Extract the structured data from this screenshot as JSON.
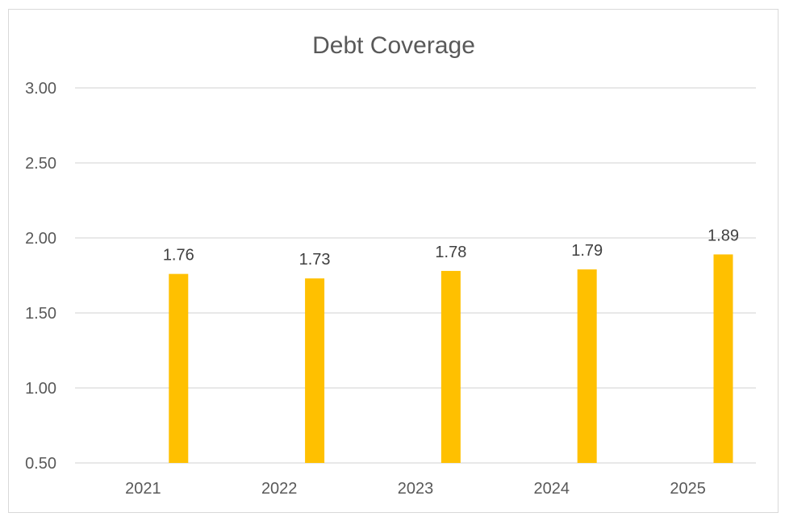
{
  "chart_data": {
    "type": "bar",
    "title": "Debt Coverage",
    "xlabel": "",
    "ylabel": "",
    "categories": [
      "2021",
      "2022",
      "2023",
      "2024",
      "2025"
    ],
    "values": [
      1.76,
      1.73,
      1.78,
      1.79,
      1.89
    ],
    "data_labels": [
      "1.76",
      "1.73",
      "1.78",
      "1.79",
      "1.89"
    ],
    "ylim": [
      0.5,
      3.0
    ],
    "yticks": [
      0.5,
      1.0,
      1.5,
      2.0,
      2.5,
      3.0
    ],
    "ytick_labels": [
      "0.50",
      "1.00",
      "1.50",
      "2.00",
      "2.50",
      "3.00"
    ],
    "grid": true,
    "legend": "none",
    "bar_color": "#FFC000"
  }
}
